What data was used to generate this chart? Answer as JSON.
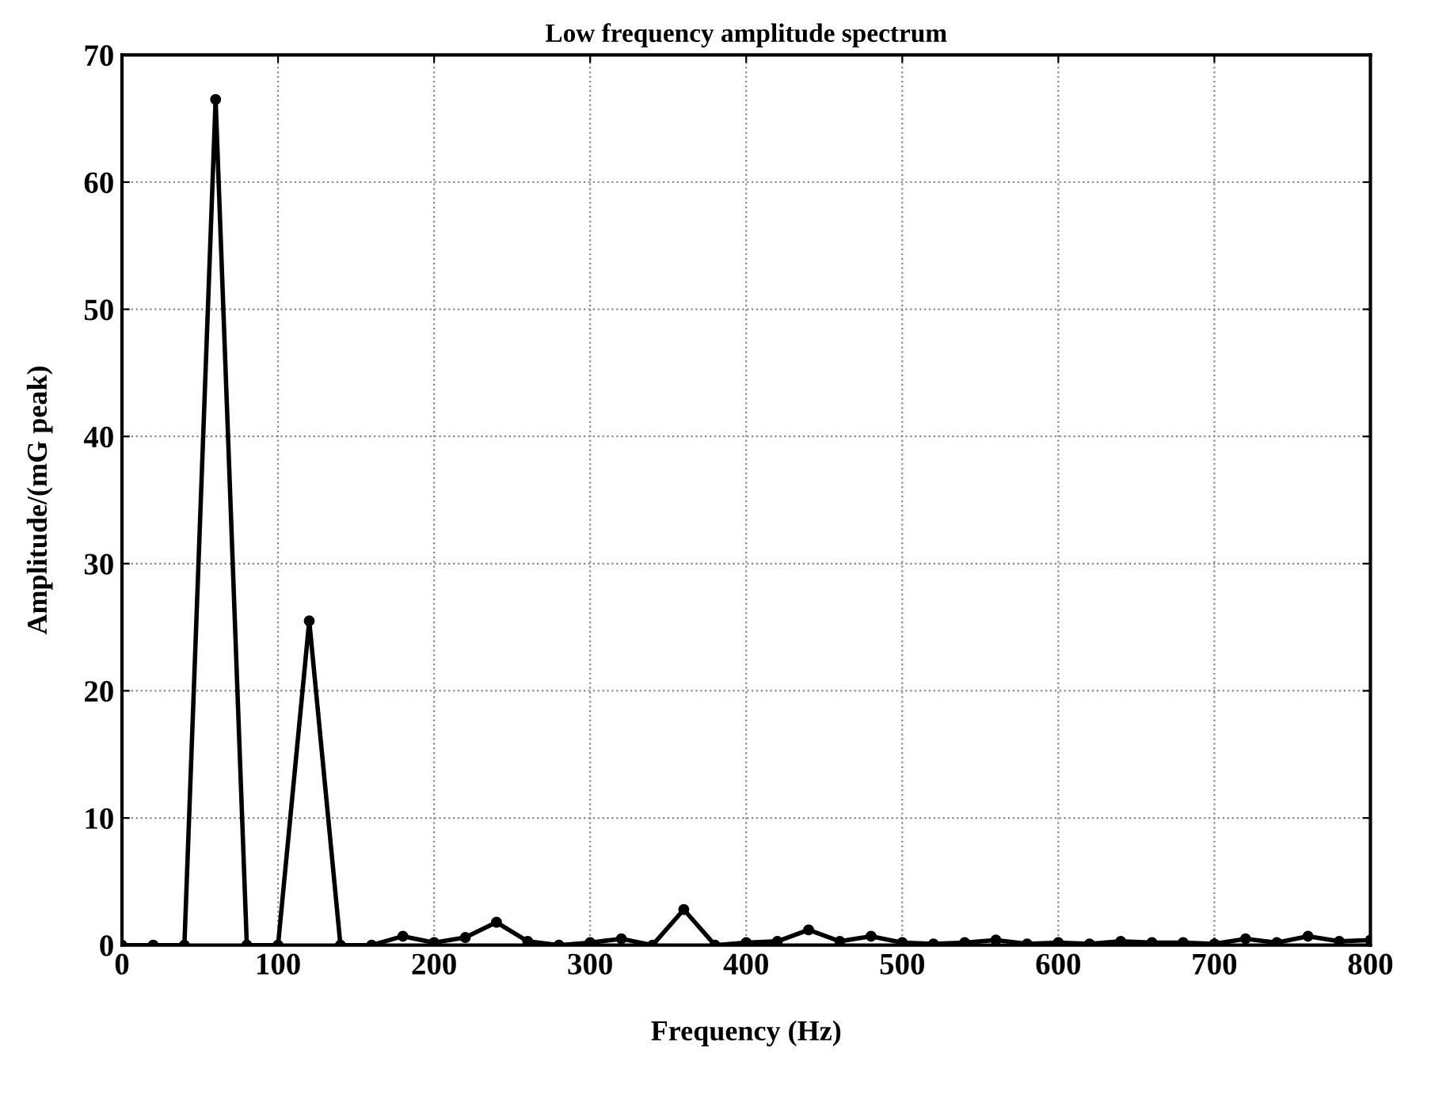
{
  "chart_data": {
    "type": "line",
    "title": "Low frequency amplitude spectrum",
    "xlabel": "Frequency (Hz)",
    "ylabel": "Amplitude/(mG peak)",
    "x": [
      0,
      20,
      40,
      60,
      80,
      100,
      120,
      140,
      160,
      180,
      200,
      220,
      240,
      260,
      280,
      300,
      320,
      340,
      360,
      380,
      400,
      420,
      440,
      460,
      480,
      500,
      520,
      540,
      560,
      580,
      600,
      620,
      640,
      660,
      680,
      700,
      720,
      740,
      760,
      780,
      800
    ],
    "series": [
      {
        "color": "#000000",
        "values": [
          0,
          0,
          0,
          66.5,
          0,
          0,
          25.5,
          0,
          0,
          0.7,
          0.2,
          0.6,
          1.8,
          0.3,
          0,
          0.2,
          0.5,
          0,
          2.8,
          0,
          0.2,
          0.3,
          1.2,
          0.3,
          0.7,
          0.2,
          0.1,
          0.2,
          0.4,
          0.1,
          0.2,
          0.1,
          0.3,
          0.2,
          0.2,
          0.1,
          0.5,
          0.2,
          0.7,
          0.3,
          0.4
        ]
      }
    ],
    "xlim": [
      0,
      800
    ],
    "xticks": [
      0,
      100,
      200,
      300,
      400,
      500,
      600,
      700,
      800
    ],
    "ylim": [
      0,
      70
    ],
    "yticks": [
      0,
      10,
      20,
      30,
      40,
      50,
      60,
      70
    ],
    "grid": true,
    "marker": "circle",
    "line_style": "solid"
  }
}
